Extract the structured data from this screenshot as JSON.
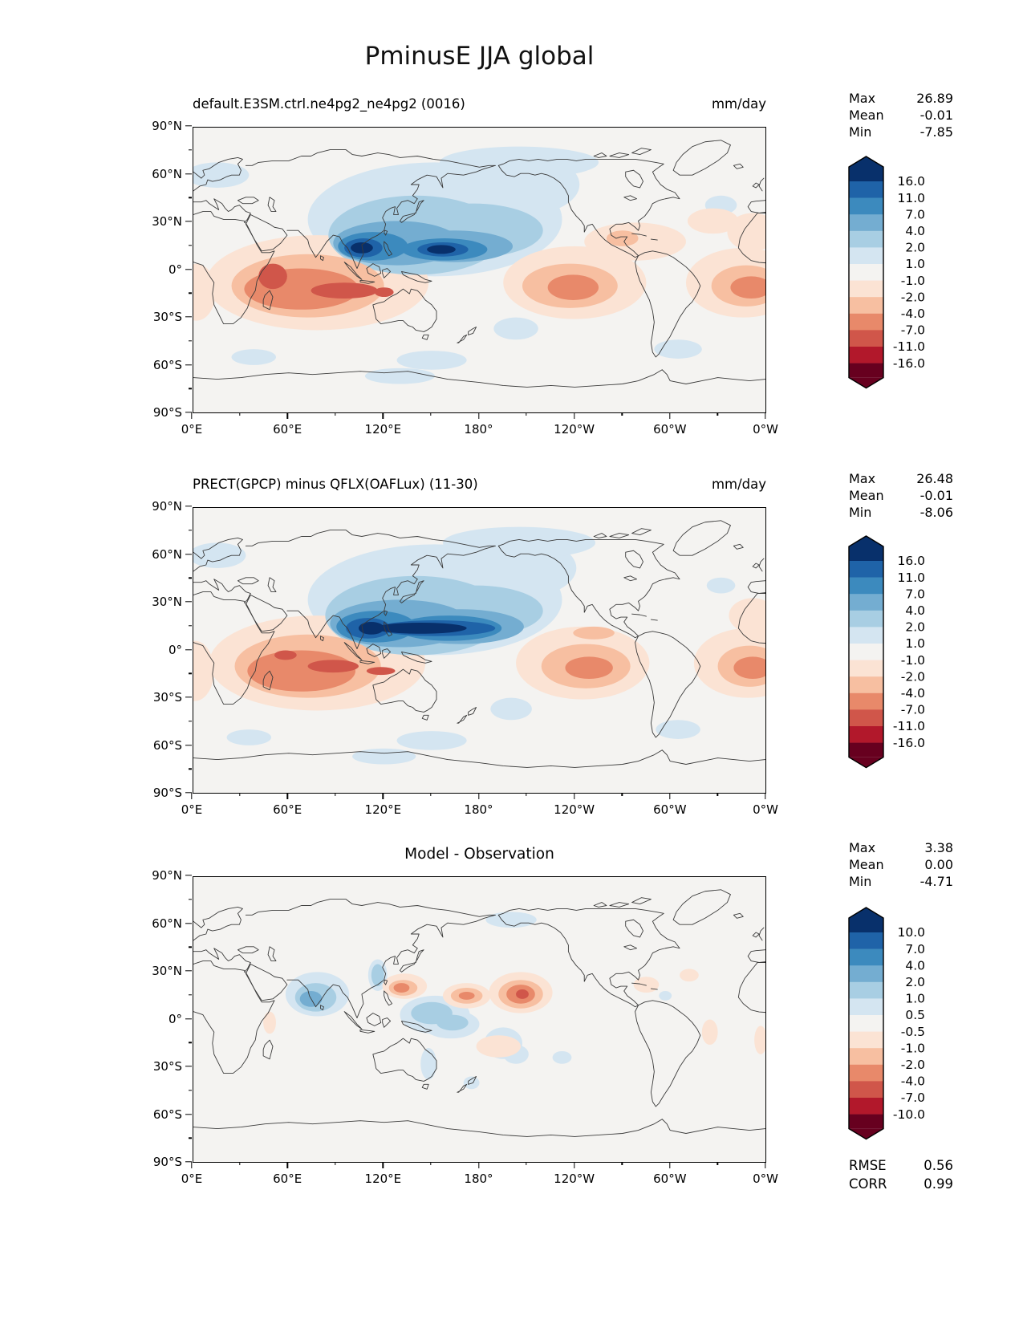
{
  "title": "PminusE JJA global",
  "chart_data": {
    "type": "heatmap",
    "subtype": "filled-contour-global-maps",
    "variable": "PminusE",
    "season": "JJA",
    "region": "global",
    "units": "mm/day",
    "axes": {
      "x_labels": [
        "0°E",
        "60°E",
        "120°E",
        "180°",
        "120°W",
        "60°W",
        "0°W"
      ],
      "y_labels": [
        "90°N",
        "60°N",
        "30°N",
        "0°",
        "30°S",
        "60°S",
        "90°S"
      ],
      "lon_range": [
        0,
        360
      ],
      "lat_range": [
        -90,
        90
      ]
    },
    "palette": [
      "#08306b",
      "#1f63a8",
      "#3c8abe",
      "#74add1",
      "#a8cee3",
      "#d4e5f1",
      "#f4f3f1",
      "#fbe3d4",
      "#f7bfa1",
      "#e8896a",
      "#d0564a",
      "#b2182b",
      "#67001f"
    ],
    "panels": [
      {
        "title": "default.E3SM.ctrl.ne4pg2_ne4pg2 (0016)",
        "units": "mm/day",
        "stats": {
          "rows": [
            {
              "label": "Max",
              "value": "26.89"
            },
            {
              "label": "Mean",
              "value": "-0.01"
            },
            {
              "label": "Min",
              "value": "-7.85"
            }
          ]
        },
        "colorbar_labels": [
          "16.0",
          "11.0",
          "7.0",
          "4.0",
          "2.0",
          "1.0",
          "-1.0",
          "-2.0",
          "-4.0",
          "-7.0",
          "-11.0",
          "-16.0"
        ],
        "features": [
          [
            152,
            32,
            80,
            36,
            5
          ],
          [
            205,
            54,
            38,
            20,
            5
          ],
          [
            15,
            60,
            20,
            8,
            5
          ],
          [
            205,
            68,
            50,
            10,
            5
          ],
          [
            332,
            41,
            10,
            6,
            5
          ],
          [
            150,
            -57,
            22,
            6,
            5
          ],
          [
            305,
            -50,
            15,
            6,
            5
          ],
          [
            38,
            -55,
            14,
            5,
            5
          ],
          [
            203,
            -37,
            14,
            7,
            5
          ],
          [
            130,
            -67,
            22,
            5,
            5
          ],
          [
            140,
            22,
            55,
            25,
            4
          ],
          [
            176,
            25,
            44,
            17,
            4
          ],
          [
            128,
            17,
            40,
            14,
            3
          ],
          [
            164,
            15,
            37,
            10,
            3
          ],
          [
            113,
            15,
            22,
            9,
            2
          ],
          [
            158,
            13,
            27,
            7,
            2
          ],
          [
            107,
            14,
            12,
            6,
            1
          ],
          [
            157,
            13,
            16,
            4.5,
            1
          ],
          [
            106,
            14,
            7,
            3.5,
            0
          ],
          [
            156,
            13,
            9,
            2.8,
            0
          ],
          [
            78,
            -8,
            70,
            30,
            7
          ],
          [
            240,
            -8,
            45,
            23,
            7
          ],
          [
            346,
            -8,
            36,
            22,
            7
          ],
          [
            2,
            -14,
            12,
            18,
            7
          ],
          [
            278,
            18,
            32,
            12,
            7
          ],
          [
            327,
            31,
            16,
            8,
            7
          ],
          [
            352,
            24,
            16,
            12,
            7
          ],
          [
            72,
            -10,
            48,
            20,
            8
          ],
          [
            237,
            -10,
            30,
            14,
            8
          ],
          [
            348,
            -10,
            22,
            13,
            8
          ],
          [
            270,
            20,
            10,
            5,
            8
          ],
          [
            68,
            -12,
            36,
            13,
            9
          ],
          [
            239,
            -11,
            16,
            8,
            9
          ],
          [
            351,
            -11,
            13,
            7,
            9
          ],
          [
            50,
            -4,
            9,
            8,
            10
          ],
          [
            95,
            -13,
            21,
            5,
            10
          ],
          [
            120,
            -14,
            6,
            3,
            10
          ]
        ]
      },
      {
        "title": "PRECT(GPCP) minus QFLX(OAFLux) (11-30)",
        "units": "mm/day",
        "stats": {
          "rows": [
            {
              "label": "Max",
              "value": "26.48"
            },
            {
              "label": "Mean",
              "value": "-0.01"
            },
            {
              "label": "Min",
              "value": "-8.06"
            }
          ]
        },
        "colorbar_labels": [
          "16.0",
          "11.0",
          "7.0",
          "4.0",
          "2.0",
          "1.0",
          "-1.0",
          "-2.0",
          "-4.0",
          "-7.0",
          "-11.0",
          "-16.0"
        ],
        "features": [
          [
            152,
            32,
            80,
            35,
            5
          ],
          [
            205,
            52,
            36,
            19,
            5
          ],
          [
            15,
            60,
            18,
            8,
            5
          ],
          [
            205,
            68,
            48,
            10,
            5
          ],
          [
            332,
            41,
            9,
            5,
            5
          ],
          [
            150,
            -57,
            22,
            6,
            5
          ],
          [
            305,
            -50,
            14,
            6,
            5
          ],
          [
            35,
            -55,
            14,
            5,
            5
          ],
          [
            200,
            -37,
            13,
            7,
            5
          ],
          [
            120,
            -67,
            20,
            5,
            5
          ],
          [
            140,
            22,
            57,
            25,
            4
          ],
          [
            178,
            25,
            42,
            16,
            4
          ],
          [
            130,
            17,
            44,
            15,
            3
          ],
          [
            168,
            15,
            40,
            11,
            3
          ],
          [
            115,
            15,
            25,
            10,
            2
          ],
          [
            161,
            14,
            33,
            8,
            2
          ],
          [
            110,
            14,
            14,
            6.5,
            1
          ],
          [
            153,
            14,
            37,
            5,
            1
          ],
          [
            143,
            14,
            29,
            3.5,
            0
          ],
          [
            112,
            14,
            8,
            4,
            0
          ],
          [
            78,
            -8,
            68,
            30,
            7
          ],
          [
            245,
            -8,
            42,
            23,
            7
          ],
          [
            349,
            -8,
            34,
            22,
            7
          ],
          [
            1,
            -13,
            12,
            19,
            7
          ],
          [
            352,
            22,
            15,
            11,
            7
          ],
          [
            252,
            11,
            13,
            4,
            8
          ],
          [
            72,
            -10,
            46,
            20,
            8
          ],
          [
            247,
            -10,
            28,
            14,
            8
          ],
          [
            350,
            -10,
            20,
            13,
            8
          ],
          [
            68,
            -13,
            34,
            13,
            9
          ],
          [
            249,
            -11,
            15,
            7,
            9
          ],
          [
            352,
            -11,
            12,
            7,
            9
          ],
          [
            58,
            -3,
            7,
            3,
            10
          ],
          [
            88,
            -10,
            16,
            4,
            10
          ],
          [
            118,
            -13,
            9,
            2.5,
            10
          ]
        ]
      },
      {
        "title": "Model - Observation",
        "units": "",
        "stats": {
          "rows": [
            {
              "label": "Max",
              "value": "3.38"
            },
            {
              "label": "Mean",
              "value": "0.00"
            },
            {
              "label": "Min",
              "value": "-4.71"
            }
          ]
        },
        "colorbar_labels": [
          "10.0",
          "7.0",
          "4.0",
          "2.0",
          "1.0",
          "0.5",
          "-0.5",
          "-1.0",
          "-2.0",
          "-4.0",
          "-7.0",
          "-10.0"
        ],
        "metrics": {
          "rows": [
            {
              "label": "RMSE",
              "value": "0.56"
            },
            {
              "label": "CORR",
              "value": "0.99"
            }
          ]
        },
        "features": [
          [
            78,
            16,
            20,
            14,
            5
          ],
          [
            116,
            28,
            6,
            10,
            5
          ],
          [
            152,
            3,
            22,
            12,
            5
          ],
          [
            162,
            -3,
            18,
            9,
            5
          ],
          [
            195,
            -15,
            12,
            10,
            5
          ],
          [
            203,
            -22,
            8,
            6,
            5
          ],
          [
            232,
            -24,
            6,
            4,
            5
          ],
          [
            175,
            -40,
            5,
            4,
            5
          ],
          [
            148,
            -28,
            5,
            10,
            5
          ],
          [
            200,
            63,
            16,
            5,
            5
          ],
          [
            297,
            15,
            4,
            3,
            5
          ],
          [
            77,
            14,
            13,
            9,
            4
          ],
          [
            116,
            28,
            4,
            7,
            4
          ],
          [
            150,
            4,
            13,
            7,
            4
          ],
          [
            163,
            -2,
            10,
            5,
            4
          ],
          [
            74,
            13,
            7,
            5,
            3
          ],
          [
            133,
            21,
            14,
            8,
            7
          ],
          [
            172,
            15,
            15,
            8,
            7
          ],
          [
            206,
            17,
            20,
            13,
            7
          ],
          [
            192,
            -17,
            14,
            7,
            7
          ],
          [
            285,
            22,
            8,
            5,
            7
          ],
          [
            312,
            28,
            6,
            4,
            7
          ],
          [
            325,
            -8,
            5,
            8,
            7
          ],
          [
            48,
            -2,
            4,
            7,
            7
          ],
          [
            357,
            -13,
            4,
            9,
            7
          ],
          [
            132,
            20,
            9,
            5,
            8
          ],
          [
            172,
            15,
            10,
            5,
            8
          ],
          [
            206,
            16,
            14,
            9,
            8
          ],
          [
            131,
            20,
            5,
            3,
            9
          ],
          [
            172,
            15,
            5,
            2.5,
            9
          ],
          [
            206,
            16,
            9,
            6,
            9
          ],
          [
            207,
            16,
            4,
            3,
            10
          ]
        ]
      }
    ]
  }
}
